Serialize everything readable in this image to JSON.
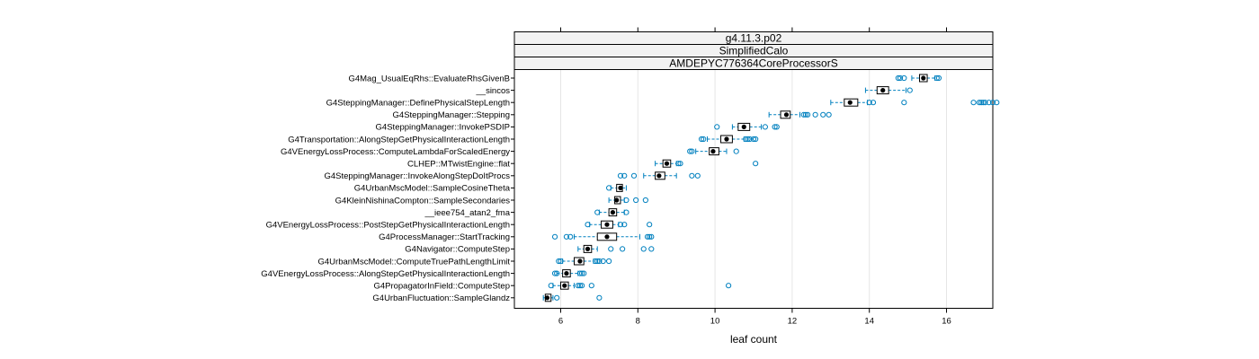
{
  "chart_data": {
    "type": "boxplot",
    "strips": [
      "g4.11.3.p02",
      "SimplifiedCalo",
      "AMDEPYC776364CoreProcessorS"
    ],
    "xlabel": "leaf count",
    "ylabel": "",
    "xlim": [
      4.8,
      17.2
    ],
    "xticks": [
      6,
      8,
      10,
      12,
      14,
      16
    ],
    "grid": "vertical",
    "colors": {
      "outlier": "#0080bf",
      "whisker": "#0080bf",
      "box": "#000000",
      "median": "#000000",
      "strip_bg": "#f2f2f2",
      "grid": "#e6e6e6"
    },
    "categories": [
      "G4Mag_UsualEqRhs::EvaluateRhsGivenB",
      "__sincos",
      "G4SteppingManager::DefinePhysicalStepLength",
      "G4SteppingManager::Stepping",
      "G4SteppingManager::InvokePSDIP",
      "G4Transportation::AlongStepGetPhysicalInteractionLength",
      "G4VEnergyLossProcess::ComputeLambdaForScaledEnergy",
      "CLHEP::MTwistEngine::flat",
      "G4SteppingManager::InvokeAlongStepDoItProcs",
      "G4UrbanMscModel::SampleCosineTheta",
      "G4KleinNishinaCompton::SampleSecondaries",
      "__ieee754_atan2_fma",
      "G4VEnergyLossProcess::PostStepGetPhysicalInteractionLength",
      "G4ProcessManager::StartTracking",
      "G4Navigator::ComputeStep",
      "G4UrbanMscModel::ComputeTruePathLengthLimit",
      "G4VEnergyLossProcess::AlongStepGetPhysicalInteractionLength",
      "G4PropagatorInField::ComputeStep",
      "G4UrbanFluctuation::SampleGlandz"
    ],
    "boxes": [
      {
        "min": 15.1,
        "q1": 15.3,
        "median": 15.4,
        "q3": 15.5,
        "max": 15.7,
        "outliers": [
          14.75,
          14.8,
          14.9,
          15.75,
          15.8
        ]
      },
      {
        "min": 13.9,
        "q1": 14.2,
        "median": 14.35,
        "q3": 14.5,
        "max": 14.95,
        "outliers": [
          15.05
        ]
      },
      {
        "min": 13.0,
        "q1": 13.35,
        "median": 13.5,
        "q3": 13.7,
        "max": 13.95,
        "outliers": [
          14.0,
          14.1,
          14.9,
          16.7,
          16.85,
          16.9,
          16.95,
          17.0,
          17.1,
          17.2,
          17.3
        ]
      },
      {
        "min": 11.4,
        "q1": 11.7,
        "median": 11.85,
        "q3": 11.95,
        "max": 12.2,
        "outliers": [
          12.3,
          12.35,
          12.4,
          12.6,
          12.8,
          12.95
        ]
      },
      {
        "min": 10.45,
        "q1": 10.6,
        "median": 10.75,
        "q3": 10.9,
        "max": 11.2,
        "outliers": [
          10.05,
          11.3,
          11.55,
          11.6
        ]
      },
      {
        "min": 9.8,
        "q1": 10.15,
        "median": 10.3,
        "q3": 10.45,
        "max": 10.75,
        "outliers": [
          9.65,
          9.7,
          10.8,
          10.85,
          10.9,
          11.0,
          11.05
        ]
      },
      {
        "min": 9.5,
        "q1": 9.85,
        "median": 9.95,
        "q3": 10.1,
        "max": 10.3,
        "outliers": [
          9.35,
          9.4,
          10.55
        ]
      },
      {
        "min": 8.45,
        "q1": 8.65,
        "median": 8.75,
        "q3": 8.85,
        "max": 9.0,
        "outliers": [
          9.05,
          9.1,
          11.05
        ]
      },
      {
        "min": 8.15,
        "q1": 8.45,
        "median": 8.55,
        "q3": 8.7,
        "max": 9.0,
        "outliers": [
          7.55,
          7.65,
          7.9,
          9.4,
          9.55
        ]
      },
      {
        "min": 7.3,
        "q1": 7.45,
        "median": 7.55,
        "q3": 7.6,
        "max": 7.7,
        "outliers": [
          7.25
        ]
      },
      {
        "min": 7.25,
        "q1": 7.4,
        "median": 7.45,
        "q3": 7.55,
        "max": 7.65,
        "outliers": [
          7.7,
          7.95,
          8.2
        ]
      },
      {
        "min": 7.0,
        "q1": 7.25,
        "median": 7.35,
        "q3": 7.45,
        "max": 7.65,
        "outliers": [
          6.95,
          7.7
        ]
      },
      {
        "min": 6.75,
        "q1": 7.05,
        "median": 7.2,
        "q3": 7.35,
        "max": 7.5,
        "outliers": [
          6.7,
          7.55,
          7.65,
          8.3
        ]
      },
      {
        "min": 6.35,
        "q1": 6.95,
        "median": 7.2,
        "q3": 7.45,
        "max": 8.05,
        "outliers": [
          5.85,
          6.15,
          6.25,
          8.25,
          8.3,
          8.35
        ]
      },
      {
        "min": 6.45,
        "q1": 6.6,
        "median": 6.7,
        "q3": 6.8,
        "max": 6.95,
        "outliers": [
          7.3,
          7.6,
          8.15,
          8.35
        ]
      },
      {
        "min": 6.05,
        "q1": 6.35,
        "median": 6.5,
        "q3": 6.6,
        "max": 6.85,
        "outliers": [
          5.95,
          6.0,
          6.9,
          6.95,
          7.0,
          7.1,
          7.25
        ]
      },
      {
        "min": 5.9,
        "q1": 6.05,
        "median": 6.15,
        "q3": 6.25,
        "max": 6.45,
        "outliers": [
          5.85,
          5.9,
          6.5,
          6.55,
          6.6
        ]
      },
      {
        "min": 5.8,
        "q1": 6.0,
        "median": 6.1,
        "q3": 6.2,
        "max": 6.35,
        "outliers": [
          5.75,
          6.45,
          6.5,
          6.55,
          6.8,
          10.35
        ]
      },
      {
        "min": 5.55,
        "q1": 5.6,
        "median": 5.65,
        "q3": 5.75,
        "max": 5.8,
        "outliers": [
          5.9,
          7.0
        ]
      }
    ]
  }
}
